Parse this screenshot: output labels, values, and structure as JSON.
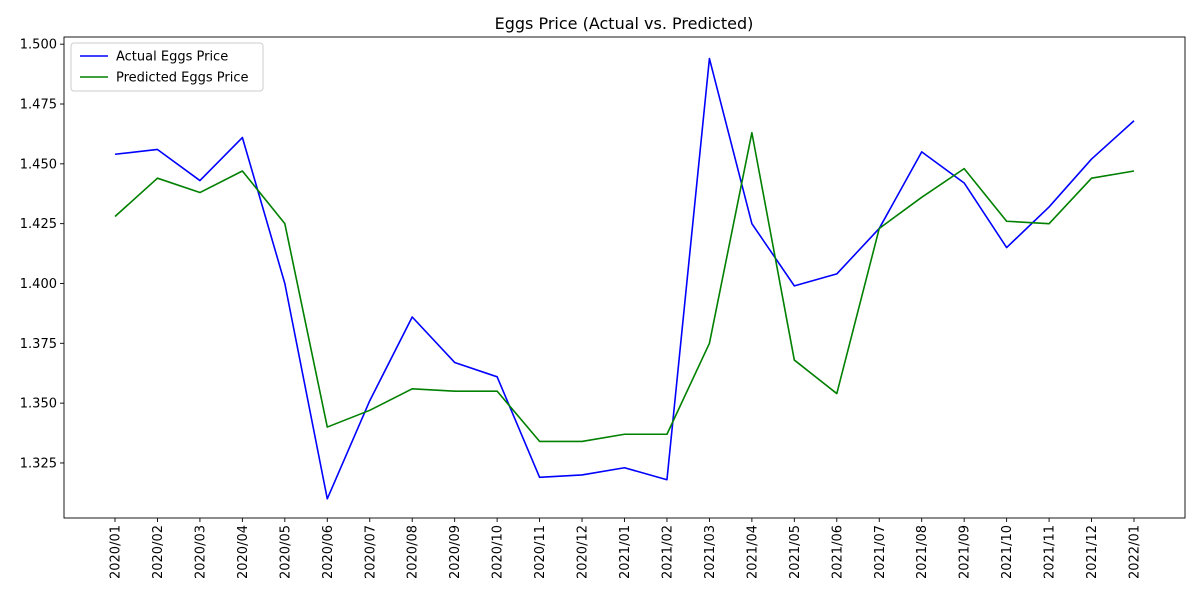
{
  "chart_data": {
    "type": "line",
    "title": "Eggs Price (Actual vs. Predicted)",
    "xlabel": "",
    "ylabel": "",
    "categories": [
      "2020/01",
      "2020/02",
      "2020/03",
      "2020/04",
      "2020/05",
      "2020/06",
      "2020/07",
      "2020/08",
      "2020/09",
      "2020/10",
      "2020/11",
      "2020/12",
      "2021/01",
      "2021/02",
      "2021/03",
      "2021/04",
      "2021/05",
      "2021/06",
      "2021/07",
      "2021/08",
      "2021/09",
      "2021/10",
      "2021/11",
      "2021/12",
      "2022/01"
    ],
    "yticks": [
      "1.325",
      "1.350",
      "1.375",
      "1.400",
      "1.425",
      "1.450",
      "1.475",
      "1.500"
    ],
    "ylim": [
      1.302,
      1.503
    ],
    "grid": false,
    "legend_position": "top-left",
    "series": [
      {
        "name": "Actual Eggs Price",
        "color": "#0000ff",
        "values": [
          1.454,
          1.456,
          1.443,
          1.461,
          1.4,
          1.31,
          1.351,
          1.386,
          1.367,
          1.361,
          1.319,
          1.32,
          1.323,
          1.318,
          1.494,
          1.425,
          1.399,
          1.404,
          1.423,
          1.455,
          1.442,
          1.415,
          1.432,
          1.452,
          1.468
        ]
      },
      {
        "name": "Predicted Eggs Price",
        "color": "#008000",
        "values": [
          1.428,
          1.444,
          1.438,
          1.447,
          1.425,
          1.34,
          1.347,
          1.356,
          1.355,
          1.355,
          1.334,
          1.334,
          1.337,
          1.337,
          1.375,
          1.463,
          1.368,
          1.354,
          1.423,
          1.436,
          1.448,
          1.426,
          1.425,
          1.444,
          1.447
        ]
      }
    ]
  }
}
